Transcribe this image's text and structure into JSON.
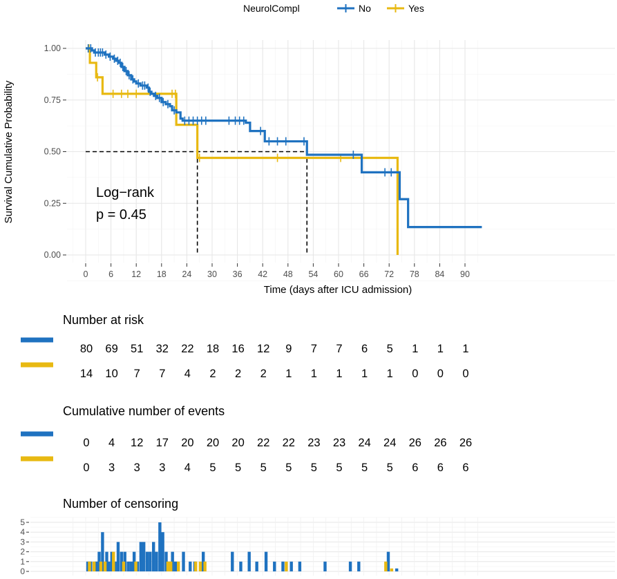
{
  "chart_data": {
    "type": "line",
    "subtype": "kaplan-meier",
    "legend": {
      "title": "NeurolCompl",
      "entries": [
        "No",
        "Yes"
      ],
      "position": "top"
    },
    "colors": {
      "No": "#1f72c0",
      "Yes": "#e8b912"
    },
    "xlabel": "Time (days after ICU admission)",
    "ylabel": "Survival Cumulative Probability",
    "xlim": [
      -3,
      94
    ],
    "ylim": [
      -0.02,
      1.04
    ],
    "x_ticks": [
      0,
      6,
      12,
      18,
      24,
      30,
      36,
      42,
      48,
      54,
      60,
      66,
      72,
      78,
      84,
      90
    ],
    "y_ticks": [
      0.0,
      0.25,
      0.5,
      0.75,
      1.0
    ],
    "y_tick_labels": [
      "0.00",
      "0.25",
      "0.50",
      "0.75",
      "1.00"
    ],
    "annotation": [
      "Log−rank",
      "p = 0.45"
    ],
    "median_lines": {
      "y": 0.5,
      "x_yes": 26.5,
      "x_no": 52.5
    },
    "series": [
      {
        "name": "No",
        "steps": [
          [
            0,
            1.0
          ],
          [
            1.5,
            0.99
          ],
          [
            2,
            0.98
          ],
          [
            4.5,
            0.97
          ],
          [
            5.5,
            0.96
          ],
          [
            6.5,
            0.95
          ],
          [
            7.2,
            0.94
          ],
          [
            7.8,
            0.93
          ],
          [
            8.5,
            0.91
          ],
          [
            9.2,
            0.89
          ],
          [
            10,
            0.87
          ],
          [
            10.8,
            0.85
          ],
          [
            11.5,
            0.84
          ],
          [
            12,
            0.83
          ],
          [
            13,
            0.82
          ],
          [
            14.5,
            0.81
          ],
          [
            15,
            0.79
          ],
          [
            15.6,
            0.78
          ],
          [
            16.2,
            0.77
          ],
          [
            17,
            0.76
          ],
          [
            18,
            0.74
          ],
          [
            19,
            0.73
          ],
          [
            20,
            0.72
          ],
          [
            20.5,
            0.7
          ],
          [
            21.5,
            0.69
          ],
          [
            22.5,
            0.66
          ],
          [
            23,
            0.65
          ],
          [
            38,
            0.64
          ],
          [
            39,
            0.6
          ],
          [
            42.5,
            0.55
          ],
          [
            52.5,
            0.485
          ],
          [
            65.5,
            0.4
          ],
          [
            74.5,
            0.27
          ],
          [
            76.5,
            0.135
          ],
          [
            94,
            0.135
          ]
        ],
        "censor_times": [
          0.6,
          1.2,
          2.3,
          3.0,
          3.5,
          4.0,
          4.8,
          5.8,
          6.8,
          7.6,
          8.2,
          8.8,
          9.6,
          10.3,
          11.2,
          12.5,
          13.5,
          14.0,
          14.8,
          15.3,
          16.6,
          17.5,
          18.4,
          19.5,
          21.0,
          23.5,
          24.5,
          25.5,
          26.5,
          27.5,
          28.5,
          34.0,
          35.5,
          36.5,
          37.5,
          41.5,
          43.5,
          45.5,
          47.5,
          51.8,
          63.5,
          71.0,
          72.5
        ]
      },
      {
        "name": "Yes",
        "steps": [
          [
            0,
            1.0
          ],
          [
            1,
            0.93
          ],
          [
            2.5,
            0.86
          ],
          [
            4,
            0.78
          ],
          [
            21.5,
            0.63
          ],
          [
            26.5,
            0.47
          ],
          [
            74,
            0.0
          ]
        ],
        "censor_times": [
          0.8,
          2.8,
          6.5,
          8.5,
          10.0,
          12.0,
          20.5,
          21.3,
          27.0,
          45.5,
          60.5
        ]
      }
    ],
    "risk_table": {
      "title": "Number at risk",
      "times": [
        0,
        6,
        12,
        18,
        24,
        30,
        36,
        42,
        48,
        54,
        60,
        66,
        72,
        78,
        84,
        90
      ],
      "No": [
        80,
        69,
        51,
        32,
        22,
        18,
        16,
        12,
        9,
        7,
        7,
        6,
        5,
        1,
        1,
        1
      ],
      "Yes": [
        14,
        10,
        7,
        7,
        4,
        2,
        2,
        2,
        1,
        1,
        1,
        1,
        1,
        0,
        0,
        0
      ]
    },
    "events_table": {
      "title": "Cumulative number of events",
      "No": [
        0,
        4,
        12,
        17,
        20,
        20,
        20,
        22,
        22,
        23,
        23,
        24,
        24,
        26,
        26,
        26
      ],
      "Yes": [
        0,
        3,
        3,
        3,
        4,
        5,
        5,
        5,
        5,
        5,
        5,
        5,
        5,
        6,
        6,
        6
      ]
    },
    "censoring": {
      "title": "Number of censoring",
      "y_ticks": [
        0,
        1,
        2,
        3,
        4,
        5
      ],
      "No": [
        [
          0.5,
          1
        ],
        [
          1.2,
          1
        ],
        [
          2.5,
          1
        ],
        [
          3.2,
          2
        ],
        [
          4,
          4
        ],
        [
          5,
          2
        ],
        [
          5.5,
          1
        ],
        [
          6.2,
          2
        ],
        [
          7,
          1
        ],
        [
          7.7,
          3
        ],
        [
          8.5,
          2
        ],
        [
          9.3,
          2
        ],
        [
          10.1,
          1
        ],
        [
          10.8,
          1
        ],
        [
          11.5,
          2
        ],
        [
          12.3,
          1
        ],
        [
          13.1,
          3
        ],
        [
          13.8,
          3
        ],
        [
          14.6,
          2
        ],
        [
          15.3,
          2
        ],
        [
          16.1,
          3
        ],
        [
          16.8,
          2
        ],
        [
          17.6,
          5
        ],
        [
          18.3,
          4
        ],
        [
          19.1,
          2
        ],
        [
          19.8,
          1
        ],
        [
          20.6,
          2
        ],
        [
          21.3,
          1
        ],
        [
          23.2,
          2
        ],
        [
          24.8,
          1
        ],
        [
          25.9,
          1
        ],
        [
          27.9,
          2
        ],
        [
          34.8,
          2
        ],
        [
          36.8,
          1
        ],
        [
          38.8,
          2
        ],
        [
          40.6,
          1
        ],
        [
          42.8,
          2
        ],
        [
          44.8,
          1
        ],
        [
          46.8,
          1
        ],
        [
          48.8,
          1
        ],
        [
          50.8,
          1
        ],
        [
          56.8,
          1
        ],
        [
          62.8,
          1
        ],
        [
          64.8,
          1
        ],
        [
          71.8,
          2
        ],
        [
          73.8,
          0.3
        ]
      ],
      "Yes": [
        [
          0.9,
          1
        ],
        [
          2,
          1
        ],
        [
          3.6,
          1
        ],
        [
          4.6,
          1
        ],
        [
          6.6,
          2
        ],
        [
          9.0,
          1
        ],
        [
          11.9,
          1
        ],
        [
          19.5,
          1
        ],
        [
          20.2,
          1
        ],
        [
          22.0,
          1
        ],
        [
          26.1,
          1
        ],
        [
          27.2,
          1
        ],
        [
          28.3,
          1
        ],
        [
          47.6,
          1
        ],
        [
          71.2,
          1
        ],
        [
          72.6,
          0.3
        ]
      ]
    }
  }
}
